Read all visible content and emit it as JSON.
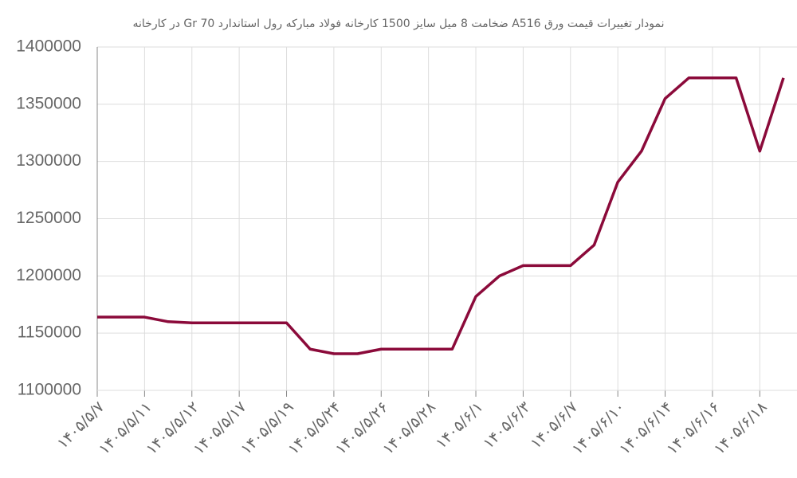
{
  "chart_data": {
    "type": "line",
    "title": "نمودار تغییرات قیمت ورق A516 ضخامت 8 میل سایز 1500 کارخانه فولاد مبارکه رول استاندارد Gr 70 در کارخانه",
    "categories": [
      "۱۴۰۵/۵/۷",
      null,
      "۱۴۰۵/۵/۱۱",
      null,
      "۱۴۰۵/۵/۱۲",
      null,
      "۱۴۰۵/۵/۱۷",
      null,
      "۱۴۰۵/۵/۱۹",
      null,
      "۱۴۰۵/۵/۲۴",
      null,
      "۱۴۰۵/۵/۲۶",
      null,
      "۱۴۰۵/۵/۲۸",
      null,
      "۱۴۰۵/۶/۱",
      null,
      "۱۴۰۵/۶/۳",
      null,
      "۱۴۰۵/۶/۷",
      null,
      "۱۴۰۵/۶/۱۰",
      null,
      "۱۴۰۵/۶/۱۴",
      null,
      "۱۴۰۵/۶/۱۶",
      null,
      "۱۴۰۵/۶/۱۸",
      null
    ],
    "values": [
      1164000,
      1164000,
      1164000,
      1160000,
      1159000,
      1159000,
      1159000,
      1159000,
      1159000,
      1136000,
      1132000,
      1132000,
      1136000,
      1136000,
      1136000,
      1136000,
      1182000,
      1200000,
      1209000,
      1209000,
      1209000,
      1227000,
      1282000,
      1309000,
      1355000,
      1373000,
      1373000,
      1373000,
      1309000,
      1373000
    ],
    "color": "#8b0a3a",
    "ylim": [
      1100000,
      1400000
    ],
    "yticks": [
      1100000,
      1150000,
      1200000,
      1250000,
      1300000,
      1350000,
      1400000
    ],
    "grid": true
  }
}
